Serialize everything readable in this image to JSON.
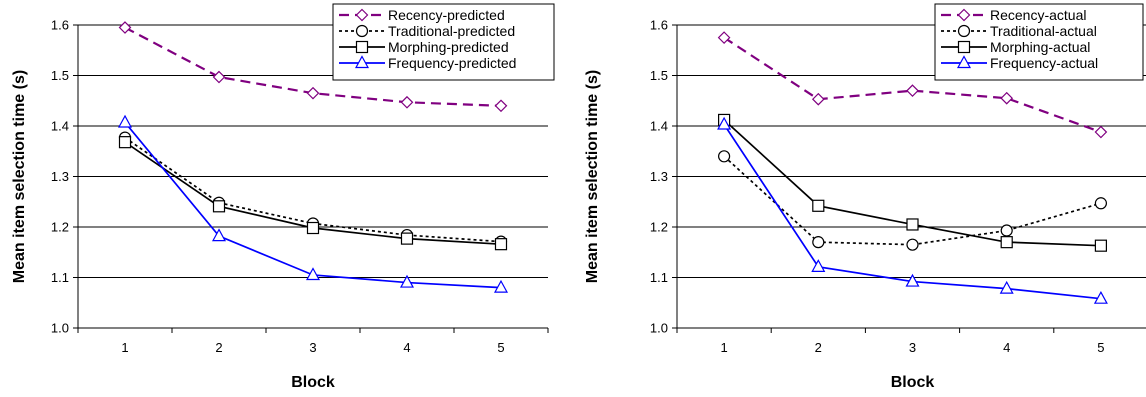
{
  "chart_data": [
    {
      "type": "line",
      "xlabel": "Block",
      "ylabel": "Mean item selection time (s)",
      "categories": [
        "1",
        "2",
        "3",
        "4",
        "5"
      ],
      "yticks": [
        "1.0",
        "1.1",
        "1.2",
        "1.3",
        "1.4",
        "1.5",
        "1.6"
      ],
      "ylim": [
        1.0,
        1.6
      ],
      "grid": true,
      "legend_position": "top-right",
      "series": [
        {
          "name": "Recency-predicted",
          "values": [
            1.595,
            1.497,
            1.465,
            1.447,
            1.44
          ],
          "color": "#800080",
          "dash": "dashed",
          "marker": "diamond"
        },
        {
          "name": "Traditional-predicted",
          "values": [
            1.377,
            1.248,
            1.207,
            1.184,
            1.171
          ],
          "color": "#000000",
          "dash": "dotted",
          "marker": "circle"
        },
        {
          "name": "Morphing-predicted",
          "values": [
            1.368,
            1.241,
            1.198,
            1.177,
            1.166
          ],
          "color": "#000000",
          "dash": "solid",
          "marker": "square"
        },
        {
          "name": "Frequency-predicted",
          "values": [
            1.407,
            1.182,
            1.105,
            1.09,
            1.08
          ],
          "color": "#0000ff",
          "dash": "solid",
          "marker": "triangle"
        }
      ]
    },
    {
      "type": "line",
      "xlabel": "Block",
      "ylabel": "Mean item selection time (s)",
      "categories": [
        "1",
        "2",
        "3",
        "4",
        "5"
      ],
      "yticks": [
        "1.0",
        "1.1",
        "1.2",
        "1.3",
        "1.4",
        "1.5",
        "1.6"
      ],
      "ylim": [
        1.0,
        1.6
      ],
      "grid": true,
      "legend_position": "top-right",
      "series": [
        {
          "name": "Recency-actual",
          "values": [
            1.575,
            1.453,
            1.47,
            1.455,
            1.388
          ],
          "color": "#800080",
          "dash": "dashed",
          "marker": "diamond"
        },
        {
          "name": "Traditional-actual",
          "values": [
            1.34,
            1.17,
            1.165,
            1.193,
            1.247
          ],
          "color": "#000000",
          "dash": "dotted",
          "marker": "circle"
        },
        {
          "name": "Morphing-actual",
          "values": [
            1.412,
            1.242,
            1.205,
            1.17,
            1.163
          ],
          "color": "#000000",
          "dash": "solid",
          "marker": "square"
        },
        {
          "name": "Frequency-actual",
          "values": [
            1.403,
            1.121,
            1.092,
            1.078,
            1.058
          ],
          "color": "#0000ff",
          "dash": "solid",
          "marker": "triangle"
        }
      ]
    }
  ]
}
